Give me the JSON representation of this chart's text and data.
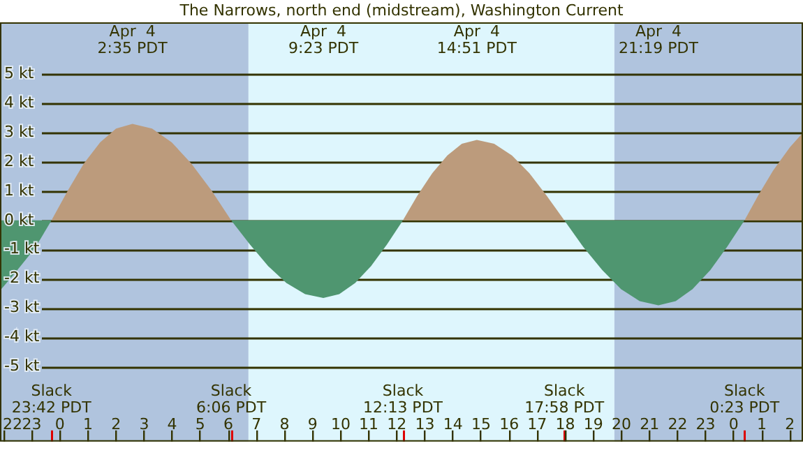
{
  "chart_data": {
    "type": "area",
    "title": "The Narrows, north end (midstream), Washington Current",
    "xlim": [
      "--04-03T21:52",
      "--04-05T02:28"
    ],
    "xticks": [
      {
        "value": "--04-03T22:00",
        "label": "22"
      },
      {
        "value": "--04-03T23:00",
        "label": "23"
      },
      {
        "value": "--04-04T00:00",
        "label": "0"
      },
      {
        "value": "--04-04T01:00",
        "label": "1"
      },
      {
        "value": "--04-04T02:00",
        "label": "2"
      },
      {
        "value": "--04-04T03:00",
        "label": "3"
      },
      {
        "value": "--04-04T04:00",
        "label": "4"
      },
      {
        "value": "--04-04T05:00",
        "label": "5"
      },
      {
        "value": "--04-04T06:00",
        "label": "6"
      },
      {
        "value": "--04-04T07:00",
        "label": "7"
      },
      {
        "value": "--04-04T08:00",
        "label": "8"
      },
      {
        "value": "--04-04T09:00",
        "label": "9"
      },
      {
        "value": "--04-04T10:00",
        "label": "10"
      },
      {
        "value": "--04-04T11:00",
        "label": "11"
      },
      {
        "value": "--04-04T12:00",
        "label": "12"
      },
      {
        "value": "--04-04T13:00",
        "label": "13"
      },
      {
        "value": "--04-04T14:00",
        "label": "14"
      },
      {
        "value": "--04-04T15:00",
        "label": "15"
      },
      {
        "value": "--04-04T16:00",
        "label": "16"
      },
      {
        "value": "--04-04T17:00",
        "label": "17"
      },
      {
        "value": "--04-04T18:00",
        "label": "18"
      },
      {
        "value": "--04-04T19:00",
        "label": "19"
      },
      {
        "value": "--04-04T20:00",
        "label": "20"
      },
      {
        "value": "--04-04T21:00",
        "label": "21"
      },
      {
        "value": "--04-04T22:00",
        "label": "22"
      },
      {
        "value": "--04-04T23:00",
        "label": "23"
      },
      {
        "value": "--04-05T00:00",
        "label": "0"
      },
      {
        "value": "--04-05T01:00",
        "label": "1"
      },
      {
        "value": "--04-05T02:00",
        "label": "2"
      }
    ],
    "ylim": [
      -7.56,
      6.77
    ],
    "yticks": [
      {
        "value": -5,
        "label": "-5 kt"
      },
      {
        "value": -4,
        "label": "-4 kt"
      },
      {
        "value": -3,
        "label": "-3 kt"
      },
      {
        "value": -2,
        "label": "-2 kt"
      },
      {
        "value": -1,
        "label": "-1 kt"
      },
      {
        "value": 0,
        "label": "0 kt"
      },
      {
        "value": 1,
        "label": "1 kt"
      },
      {
        "value": 2,
        "label": "2 kt"
      },
      {
        "value": 3,
        "label": "3 kt"
      },
      {
        "value": 4,
        "label": "4 kt"
      },
      {
        "value": 5,
        "label": "5 kt"
      }
    ],
    "grid": "y",
    "legend": false,
    "marker": "none",
    "series": [
      {
        "color": "#bc9b7c",
        "x": [
          "--04-03T23:42",
          "--04-04T00:17",
          "--04-04T00:51",
          "--04-04T01:26",
          "--04-04T02:00",
          "--04-04T02:35",
          "--04-04T03:17",
          "--04-04T03:59",
          "--04-04T04:41",
          "--04-04T05:24",
          "--04-04T06:06",
          "--04-04T09:23",
          "--04-04T12:13",
          "--04-04T12:44",
          "--04-04T13:16",
          "--04-04T13:48",
          "--04-04T14:19",
          "--04-04T14:51",
          "--04-04T15:28",
          "--04-04T16:06",
          "--04-04T16:43",
          "--04-04T17:20",
          "--04-04T17:58",
          "--04-04T21:19",
          "--04-05T00:23",
          "--04-05T00:54",
          "--04-05T01:24",
          "--04-05T02:00",
          "--04-05T02:28"
        ],
        "values": [
          0,
          1.02,
          1.94,
          2.67,
          3.14,
          3.3,
          3.14,
          2.67,
          1.94,
          1.02,
          0,
          null,
          0,
          0.85,
          1.62,
          2.22,
          2.62,
          2.75,
          2.62,
          2.22,
          1.62,
          0.85,
          0,
          null,
          0,
          0.9,
          1.7,
          2.5,
          3.0
        ]
      },
      {
        "color": "#4f9670",
        "x": [
          "--04-03T21:52",
          "--04-03T22:24",
          "--04-03T22:54",
          "--04-03T23:18",
          "--04-03T23:42",
          "--04-04T02:35",
          "--04-04T06:06",
          "--04-04T06:46",
          "--04-04T07:25",
          "--04-04T08:04",
          "--04-04T08:44",
          "--04-04T09:23",
          "--04-04T09:57",
          "--04-04T10:31",
          "--04-04T11:05",
          "--04-04T11:39",
          "--04-04T12:13",
          "--04-04T14:51",
          "--04-04T17:58",
          "--04-04T18:38",
          "--04-04T19:19",
          "--04-04T19:59",
          "--04-04T20:39",
          "--04-04T21:19",
          "--04-04T21:56",
          "--04-04T22:32",
          "--04-04T23:10",
          "--04-04T23:46",
          "--04-05T00:23"
        ],
        "values": [
          -2.4,
          -1.8,
          -1.2,
          -0.65,
          0,
          null,
          0,
          -0.82,
          -1.56,
          -2.14,
          -2.52,
          -2.65,
          -2.52,
          -2.14,
          -1.56,
          -0.82,
          0,
          null,
          0,
          -0.9,
          -1.7,
          -2.35,
          -2.76,
          -2.9,
          -2.76,
          -2.35,
          -1.7,
          -0.9,
          0
        ]
      }
    ],
    "bands": [
      {
        "axis": "x",
        "from": "--04-03T21:52",
        "to": "--04-04T06:43",
        "color": "#b0c4de"
      },
      {
        "axis": "x",
        "from": "--04-04T06:43",
        "to": "--04-04T19:45",
        "color": "#def6fd"
      },
      {
        "axis": "x",
        "from": "--04-04T19:45",
        "to": "--04-05T02:28",
        "color": "#b0c4de"
      }
    ],
    "annotations": [
      "Apr  4\n2:35 PDT",
      "Apr  4\n9:23 PDT",
      "Apr  4\n14:51 PDT",
      "Apr  4\n21:19 PDT",
      "Slack\n23:42 PDT",
      "Slack\n6:06 PDT",
      "Slack\n12:13 PDT",
      "Slack\n17:58 PDT",
      "Slack\n0:23 PDT"
    ]
  }
}
